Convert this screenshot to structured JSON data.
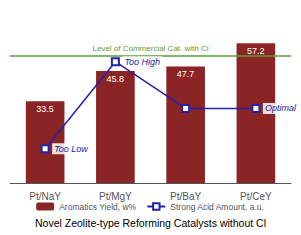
{
  "chart_data": {
    "type": "bar",
    "title": "Novel Zeolite-type Reforming Catalysts without Cl",
    "categories": [
      "Pt/NaY",
      "Pt/MgY",
      "Pt/BaY",
      "Pt/CeY"
    ],
    "series": [
      {
        "name": "Aromatics Yield, w%",
        "type": "bar",
        "color": "#8B2525",
        "values": [
          33.5,
          45.8,
          47.7,
          57.2
        ],
        "data_labels": true
      },
      {
        "name": "Strong Acid Amount, a.u.",
        "type": "line",
        "axis": "y2",
        "color": "#2222AA",
        "marker": "square",
        "values": [
          22,
          78,
          48,
          48
        ]
      }
    ],
    "ylim": [
      0,
      70
    ],
    "y2lim": [
      0,
      110
    ],
    "reference_lines": [
      {
        "y": 52.0,
        "label": "Level of Commercial Cat. with Cl",
        "color": "#5A9E3A"
      }
    ],
    "annotations": [
      {
        "text": "Too Low",
        "category": "Pt/NaY",
        "series": "Strong Acid Amount, a.u."
      },
      {
        "text": "Too High",
        "category": "Pt/MgY",
        "series": "Strong Acid Amount, a.u."
      },
      {
        "text": "Optimal",
        "category": "Pt/CeY",
        "series": "Strong Acid Amount, a.u."
      }
    ],
    "tick_labels": "x",
    "grid": false,
    "legend": "bottom"
  }
}
